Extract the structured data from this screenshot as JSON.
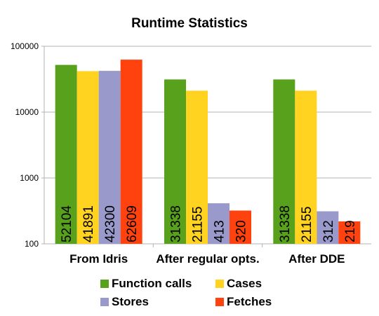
{
  "chart_data": {
    "type": "bar",
    "title": "Runtime Statistics",
    "categories": [
      "From Idris",
      "After regular opts.",
      "After DDE"
    ],
    "y_scale": "log",
    "ylim": [
      100,
      100000
    ],
    "y_ticks": [
      "100",
      "1000",
      "10000",
      "100000"
    ],
    "grid": "horizontal",
    "legend_position": "bottom",
    "series": [
      {
        "name": "Function calls",
        "color": "#57a11d",
        "values": [
          52104,
          31338,
          31338
        ]
      },
      {
        "name": "Cases",
        "color": "#ffd320",
        "values": [
          41891,
          21155,
          21155
        ]
      },
      {
        "name": "Stores",
        "color": "#9999cc",
        "values": [
          42300,
          413,
          312
        ]
      },
      {
        "name": "Fetches",
        "color": "#ff420e",
        "values": [
          62609,
          320,
          219
        ]
      }
    ]
  }
}
